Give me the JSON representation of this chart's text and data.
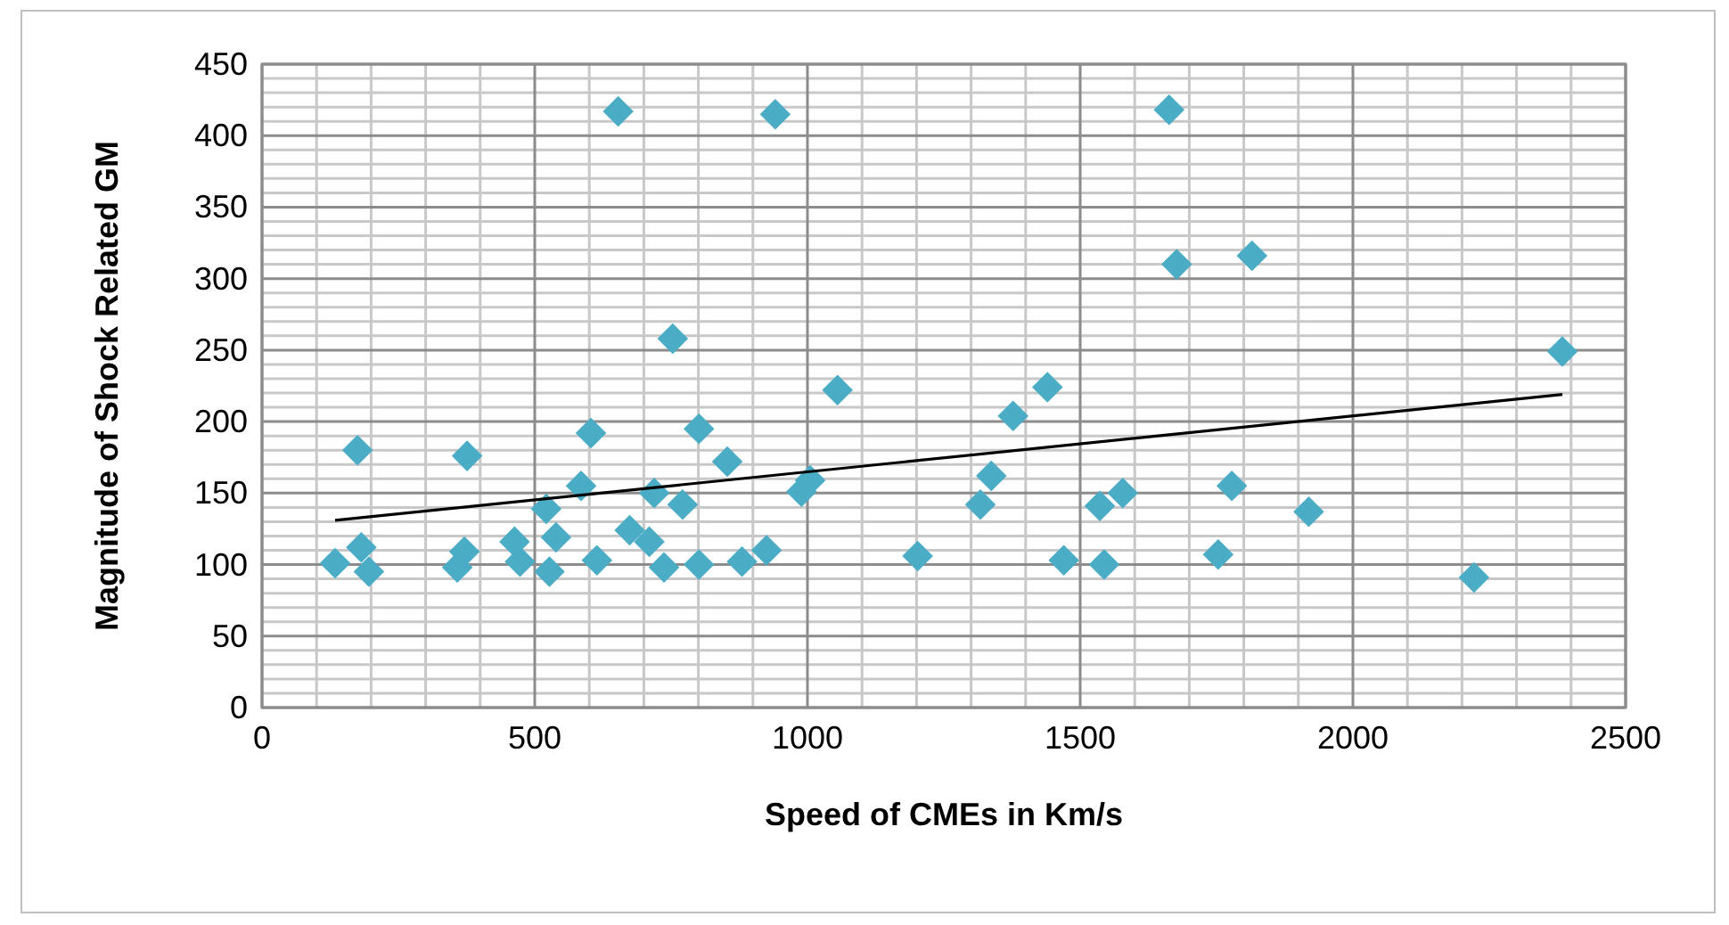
{
  "chart_data": {
    "type": "scatter",
    "xlabel": "Speed of CMEs in Km/s",
    "ylabel": "Magnitude of Shock Related GM",
    "xlim": [
      0,
      2500
    ],
    "ylim": [
      0,
      450
    ],
    "xticks": [
      0,
      500,
      1000,
      1500,
      2000,
      2500
    ],
    "yticks": [
      0,
      50,
      100,
      150,
      200,
      250,
      300,
      350,
      400,
      450
    ],
    "grid": true,
    "marker": "diamond",
    "series": [
      {
        "color": "#4bacc6",
        "x": [
          134,
          175,
          182,
          196,
          376,
          358,
          371,
          463,
          473,
          521,
          527,
          539,
          585,
          603,
          614,
          674,
          710,
          719,
          737,
          753,
          771,
          801,
          801,
          853,
          880,
          925,
          941,
          653,
          989,
          1005,
          1055,
          1202,
          1663,
          1677,
          1815,
          2384,
          1440,
          1377,
          1337,
          1317,
          1470,
          1536,
          1544,
          1578,
          1753,
          1778,
          1919,
          2222
        ],
        "values": [
          101,
          180,
          112,
          95,
          176,
          98,
          109,
          116,
          102,
          139,
          95,
          119,
          155,
          192,
          103,
          124,
          116,
          150,
          98,
          258,
          142,
          100,
          195,
          172,
          102,
          110,
          415,
          417,
          151,
          159,
          222,
          106,
          418,
          310,
          316,
          249,
          224,
          204,
          162,
          142,
          103,
          141,
          100,
          150,
          107,
          155,
          137,
          91
        ]
      },
      {
        "type": "line",
        "color": "#000000",
        "marker": "none",
        "x": [
          134,
          2384
        ],
        "values": [
          131,
          219
        ]
      }
    ]
  }
}
